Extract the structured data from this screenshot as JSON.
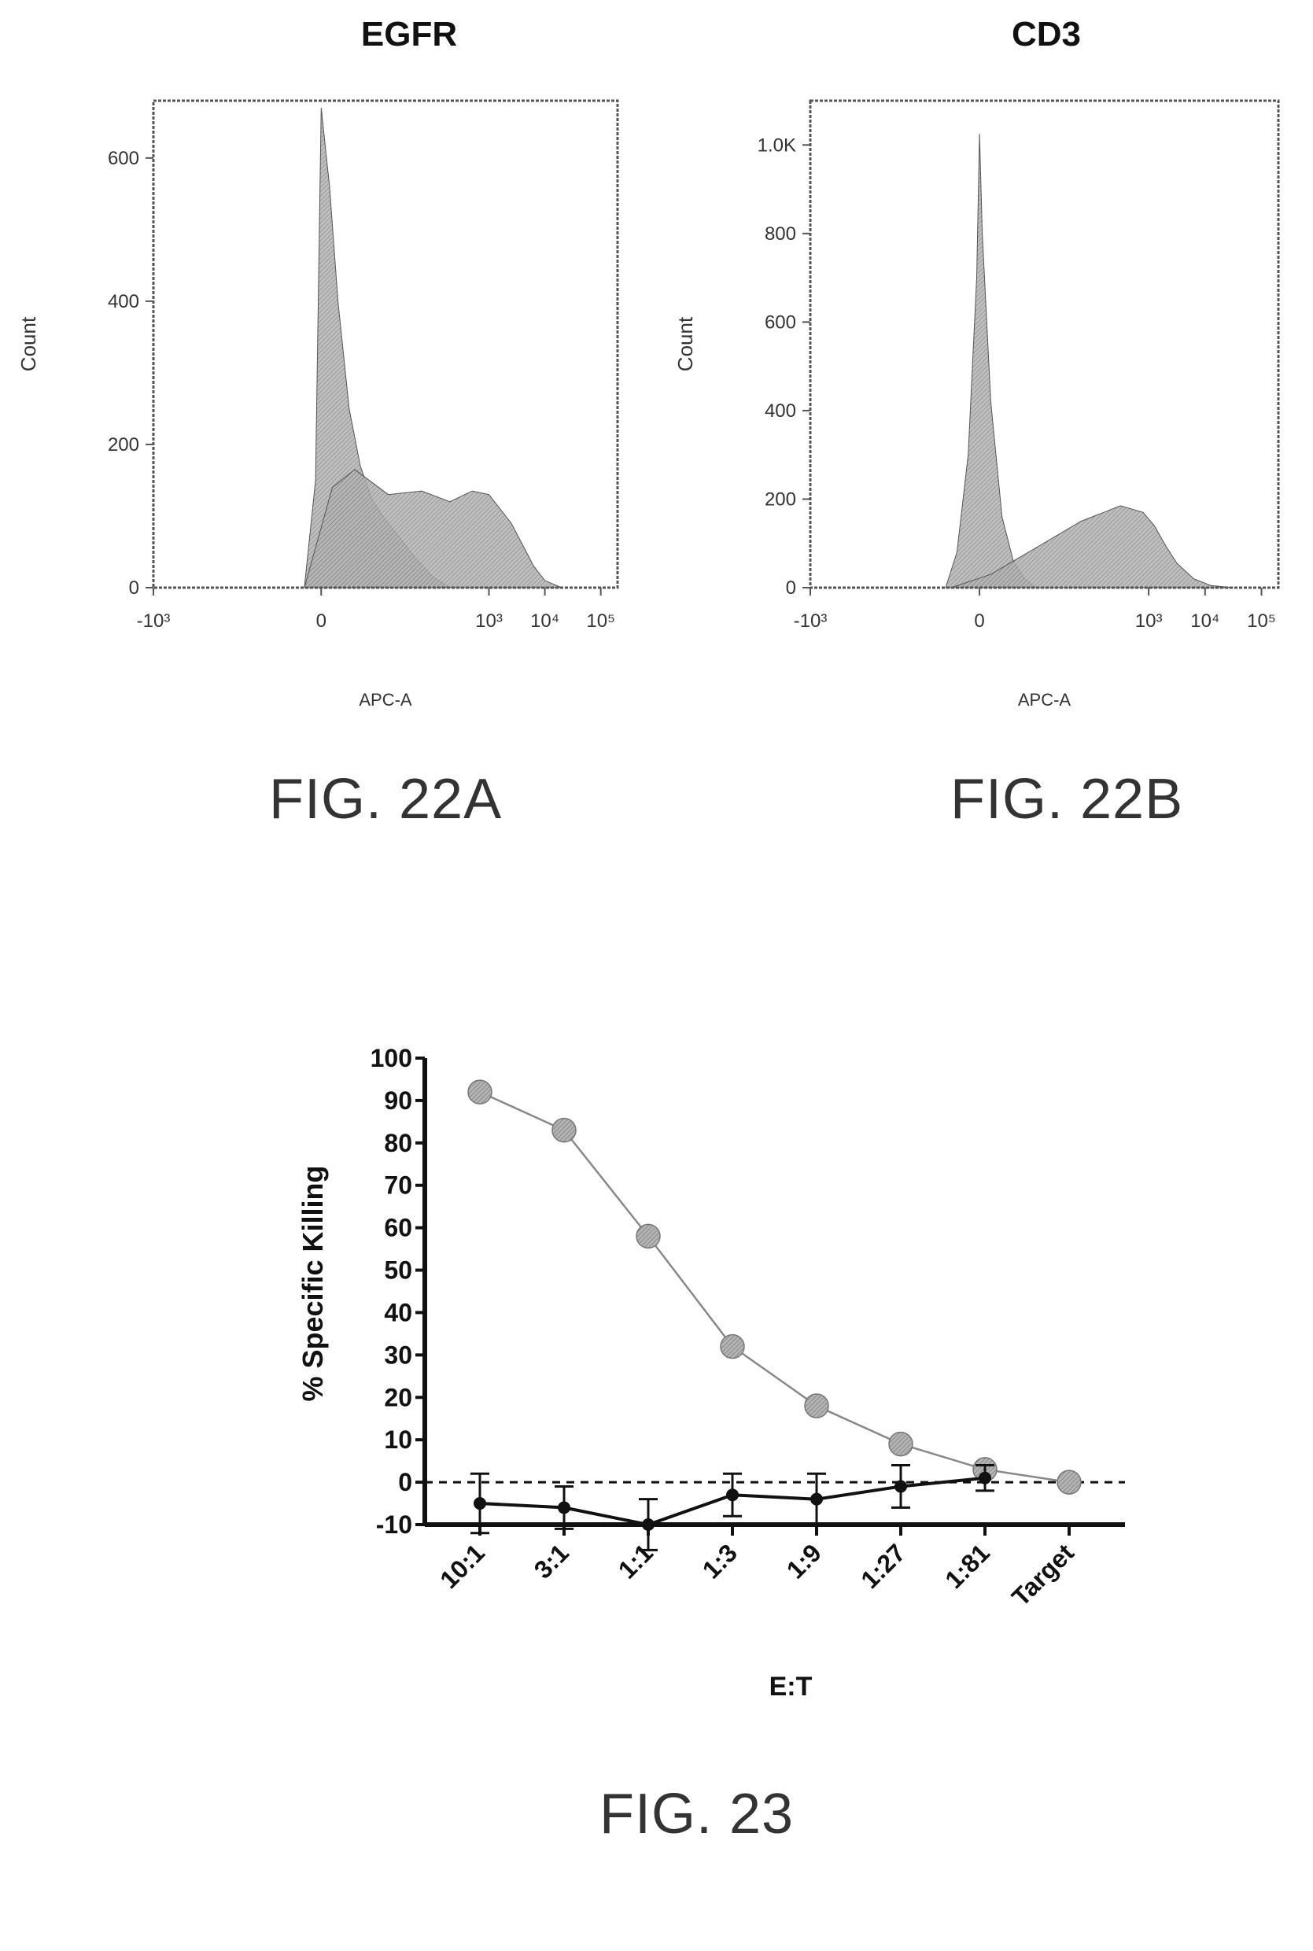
{
  "captions": {
    "fig22a": "FIG. 22A",
    "fig22b": "FIG. 22B",
    "fig23": "FIG. 23"
  },
  "colors": {
    "fill": "#9a9a9a",
    "stroke": "#555555",
    "axis": "#555555",
    "text": "#333333",
    "dark": "#111111"
  },
  "chart_data": [
    {
      "id": "fig22a",
      "type": "area",
      "title": "EGFR",
      "xlabel": "APC-A",
      "ylabel": "Count",
      "xscale": "biexponential",
      "xlim": [
        -3,
        5.3
      ],
      "ylim": [
        0,
        680
      ],
      "xticks": [
        {
          "v": -3,
          "label": "-10³"
        },
        {
          "v": 0,
          "label": "0"
        },
        {
          "v": 3,
          "label": "10³"
        },
        {
          "v": 4,
          "label": "10⁴"
        },
        {
          "v": 5,
          "label": "10⁵"
        }
      ],
      "yticks": [
        {
          "v": 0,
          "label": "0"
        },
        {
          "v": 200,
          "label": "200"
        },
        {
          "v": 400,
          "label": "400"
        },
        {
          "v": 600,
          "label": "600"
        }
      ],
      "series": [
        {
          "x": [
            -0.3,
            -0.1,
            0,
            0.15,
            0.3,
            0.5,
            0.7,
            0.9,
            1.1,
            1.3,
            1.5,
            1.7,
            2.0,
            2.3
          ],
          "y": [
            0,
            150,
            670,
            560,
            400,
            250,
            170,
            125,
            100,
            80,
            60,
            40,
            15,
            0
          ]
        },
        {
          "x": [
            -0.3,
            0.2,
            0.6,
            1.2,
            1.8,
            2.3,
            2.7,
            3.0,
            3.2,
            3.4,
            3.6,
            3.8,
            4.0,
            4.3
          ],
          "y": [
            0,
            140,
            165,
            130,
            135,
            120,
            135,
            130,
            110,
            90,
            60,
            30,
            10,
            0
          ]
        }
      ]
    },
    {
      "id": "fig22b",
      "type": "area",
      "title": "CD3",
      "xlabel": "APC-A",
      "ylabel": "Count",
      "xscale": "biexponential",
      "xlim": [
        -3,
        5.3
      ],
      "ylim": [
        0,
        1100
      ],
      "xticks": [
        {
          "v": -3,
          "label": "-10³"
        },
        {
          "v": 0,
          "label": "0"
        },
        {
          "v": 3,
          "label": "10³"
        },
        {
          "v": 4,
          "label": "10⁴"
        },
        {
          "v": 5,
          "label": "10⁵"
        }
      ],
      "yticks": [
        {
          "v": 0,
          "label": "0"
        },
        {
          "v": 200,
          "label": "200"
        },
        {
          "v": 400,
          "label": "400"
        },
        {
          "v": 600,
          "label": "600"
        },
        {
          "v": 800,
          "label": "800"
        },
        {
          "v": 1000,
          "label": "1.0K"
        }
      ],
      "series": [
        {
          "x": [
            -0.6,
            -0.4,
            -0.2,
            -0.05,
            0,
            0.05,
            0.2,
            0.4,
            0.6,
            0.8,
            1.0
          ],
          "y": [
            0,
            80,
            300,
            700,
            1025,
            800,
            420,
            160,
            60,
            20,
            0
          ]
        },
        {
          "x": [
            -0.5,
            0.2,
            1.0,
            1.8,
            2.5,
            2.9,
            3.1,
            3.3,
            3.5,
            3.8,
            4.1,
            4.5
          ],
          "y": [
            0,
            30,
            90,
            150,
            185,
            170,
            140,
            95,
            55,
            20,
            5,
            0
          ]
        }
      ]
    },
    {
      "id": "fig23",
      "type": "line",
      "xlabel": "E:T",
      "ylabel": "% Specific Killing",
      "categories": [
        "10:1",
        "3:1",
        "1:1",
        "1:3",
        "1:9",
        "1:27",
        "1:81",
        "Target"
      ],
      "ylim": [
        -10,
        100
      ],
      "yticks": [
        -10,
        0,
        10,
        20,
        30,
        40,
        50,
        60,
        70,
        80,
        90,
        100
      ],
      "reference_line": 0,
      "series": [
        {
          "values": [
            92,
            83,
            58,
            32,
            18,
            9,
            3,
            0
          ],
          "style": "gray-markers"
        },
        {
          "values": [
            -5,
            -6,
            -10,
            -3,
            -4,
            -1,
            1,
            null
          ],
          "errors": [
            7,
            5,
            6,
            5,
            6,
            5,
            3,
            null
          ],
          "style": "black-markers"
        }
      ]
    }
  ]
}
